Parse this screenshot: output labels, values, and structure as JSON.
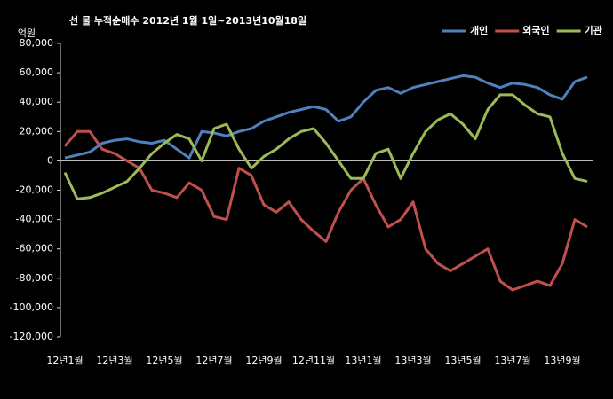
{
  "chart_data": {
    "type": "line",
    "title": "선 물 누적순매수 2012년 1월 1일~2013년10월18일",
    "y_label": "억원",
    "categories": [
      "12년1월",
      null,
      null,
      null,
      "12년3월",
      null,
      null,
      null,
      "12년5월",
      null,
      null,
      null,
      "12년7월",
      null,
      null,
      null,
      "12년9월",
      null,
      null,
      null,
      "12년11월",
      null,
      null,
      null,
      "13년1월",
      null,
      null,
      null,
      "13년3월",
      null,
      null,
      null,
      "13년5월",
      null,
      null,
      null,
      "13년7월",
      null,
      null,
      null,
      "13년9월",
      null,
      null
    ],
    "series": [
      {
        "name": "개인",
        "color": "#4f81bd",
        "values": [
          2000,
          4000,
          6000,
          12000,
          14000,
          15000,
          13000,
          12000,
          14000,
          8000,
          2000,
          20000,
          19000,
          17000,
          20000,
          22000,
          27000,
          30000,
          33000,
          35000,
          37000,
          35000,
          27000,
          30000,
          40000,
          48000,
          50000,
          46000,
          50000,
          52000,
          54000,
          56000,
          58000,
          57000,
          53000,
          50000,
          53000,
          52000,
          50000,
          45000,
          42000,
          54000,
          57000
        ]
      },
      {
        "name": "외국인",
        "color": "#c0504d",
        "values": [
          10000,
          20000,
          20000,
          8000,
          5000,
          0,
          -5000,
          -20000,
          -22000,
          -25000,
          -15000,
          -20000,
          -38000,
          -40000,
          -5000,
          -10000,
          -30000,
          -35000,
          -28000,
          -40000,
          -48000,
          -55000,
          -35000,
          -20000,
          -12000,
          -30000,
          -45000,
          -40000,
          -28000,
          -60000,
          -70000,
          -75000,
          -70000,
          -65000,
          -60000,
          -82000,
          -88000,
          -85000,
          -82000,
          -85000,
          -70000,
          -40000,
          -45000
        ]
      },
      {
        "name": "기관",
        "color": "#9bbb59",
        "values": [
          -8000,
          -26000,
          -25000,
          -22000,
          -18000,
          -14000,
          -5000,
          5000,
          12000,
          18000,
          15000,
          0,
          22000,
          25000,
          8000,
          -5000,
          3000,
          8000,
          15000,
          20000,
          22000,
          12000,
          0,
          -12000,
          -12000,
          5000,
          8000,
          -12000,
          5000,
          20000,
          28000,
          32000,
          25000,
          15000,
          35000,
          45000,
          45000,
          38000,
          32000,
          30000,
          5000,
          -12000,
          -14000
        ]
      }
    ],
    "ylim": [
      -120000,
      80000
    ],
    "yticks": [
      {
        "value": -120000,
        "label": "-120,000"
      },
      {
        "value": -100000,
        "label": "-100,000"
      },
      {
        "value": -80000,
        "label": "-80,000"
      },
      {
        "value": -60000,
        "label": "-60,000"
      },
      {
        "value": -40000,
        "label": "-40,000"
      },
      {
        "value": -20000,
        "label": "-20,000"
      },
      0,
      {
        "value": 20000,
        "label": "20,000"
      },
      {
        "value": 40000,
        "label": "40,000"
      },
      {
        "value": 60000,
        "label": "60,000"
      },
      {
        "value": 80000,
        "label": "80,000"
      }
    ],
    "grid": false,
    "legend": "top-right"
  }
}
